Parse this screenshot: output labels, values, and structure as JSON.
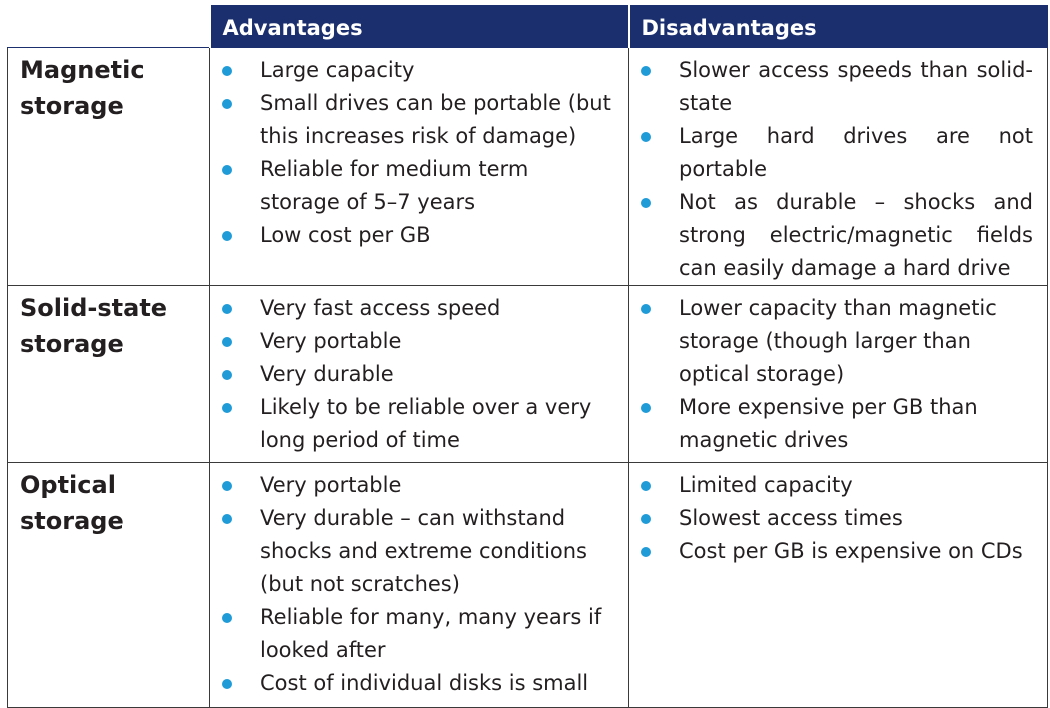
{
  "header": {
    "advantages": "Advantages",
    "disadvantages": "Disadvantages"
  },
  "rows": [
    {
      "label": "Magnetic storage",
      "advantages": [
        "Large capacity",
        "Small drives can be portable (but this increases risk of damage)",
        "Reliable for medium term storage of 5–7 years",
        "Low cost per GB"
      ],
      "disadvantages": [
        "Slower access speeds than solid-state",
        "Large hard drives are not portable",
        "Not as durable – shocks and strong electric/magnetic fields can easily damage a hard drive"
      ]
    },
    {
      "label": "Solid-state storage",
      "advantages": [
        "Very fast access speed",
        "Very portable",
        "Very durable",
        "Likely to be reliable over a very long period of time"
      ],
      "disadvantages": [
        "Lower capacity than magnetic storage (though larger than optical storage)",
        "More expensive per GB than magnetic drives"
      ]
    },
    {
      "label": "Optical storage",
      "advantages": [
        "Very portable",
        "Very durable – can withstand shocks and extreme conditions (but not scratches)",
        "Reliable for many, many years if looked after",
        "Cost of individual disks is small"
      ],
      "disadvantages": [
        "Limited capacity",
        "Slowest access times",
        "Cost per GB is expensive on CDs"
      ]
    }
  ],
  "colors": {
    "header_bg": "#1b2f6e",
    "bullet": "#1f9bd7",
    "text": "#231f20"
  }
}
